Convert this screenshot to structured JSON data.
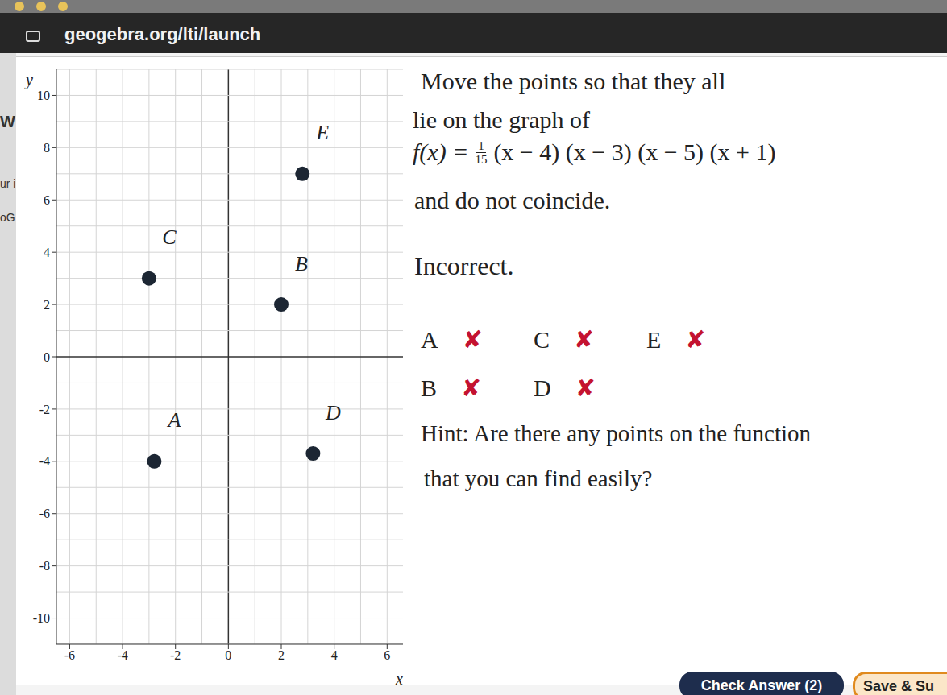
{
  "browser": {
    "url": "geogebra.org/lti/launch"
  },
  "sidebar": [
    "W",
    "ur i",
    "oG"
  ],
  "chart_data": {
    "type": "scatter",
    "x_label": "x",
    "y_label": "y",
    "xlim": [
      -6.5,
      6.6
    ],
    "ylim": [
      -11,
      11
    ],
    "xticks": [
      -6,
      -4,
      -2,
      0,
      2,
      4,
      6
    ],
    "yticks": [
      -10,
      -8,
      -6,
      -4,
      -2,
      0,
      2,
      4,
      6,
      8,
      10
    ],
    "grid": true,
    "marker": "circle",
    "color": "#1c2633",
    "point_labels": [
      "A",
      "B",
      "C",
      "D",
      "E"
    ],
    "x": [
      -2.8,
      2,
      -3,
      3.2,
      2.8
    ],
    "values": [
      -4,
      2,
      3,
      -3.7,
      7
    ]
  },
  "panel": {
    "instruction": [
      "Move the points so that they all",
      "lie on the graph of"
    ],
    "formula": {
      "lhs": "f(x) =",
      "numerator": "1",
      "denominator": "15",
      "factors": "(x − 4) (x − 3) (x − 5) (x + 1)"
    },
    "instruction_end": "and do not coincide.",
    "status": "Incorrect.",
    "results": [
      [
        "A",
        "C",
        "E"
      ],
      [
        "B",
        "D"
      ]
    ],
    "result_mark": "✘",
    "hint": [
      "Hint: Are there any points on the function",
      "that you can find easily?"
    ],
    "buttons": [
      "Check Answer (2)",
      "Save & Su"
    ]
  }
}
